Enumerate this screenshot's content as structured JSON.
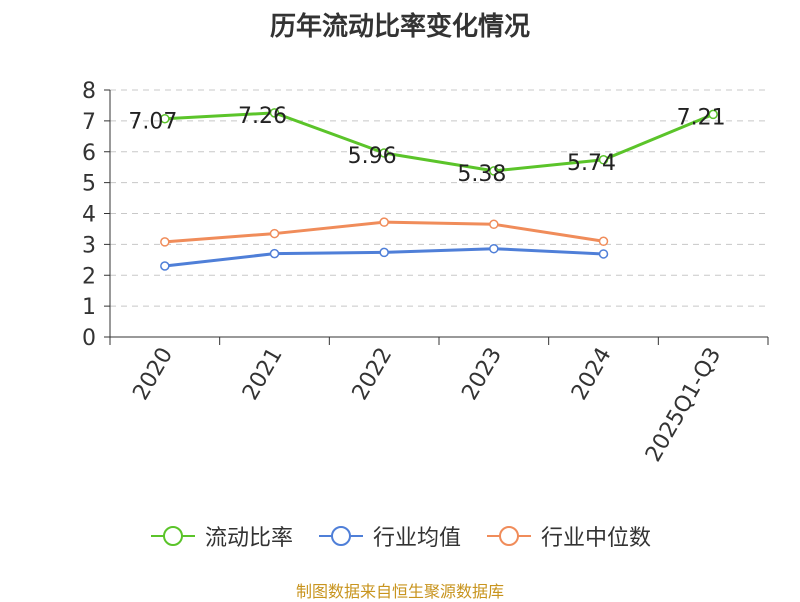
{
  "chart_data": {
    "type": "line",
    "title": "历年流动比率变化情况",
    "categories": [
      "2020",
      "2021",
      "2022",
      "2023",
      "2024",
      "2025Q1-Q3"
    ],
    "ylim": [
      0,
      8
    ],
    "yticks": [
      "0",
      "1",
      "2",
      "3",
      "4",
      "5",
      "6",
      "7",
      "8"
    ],
    "grid": true,
    "legend_position": "bottom",
    "series": [
      {
        "name": "流动比率",
        "color": "#5bc42a",
        "values": [
          7.07,
          7.26,
          5.96,
          5.38,
          5.74,
          7.21
        ],
        "labels": [
          "7.07",
          "7.26",
          "5.96",
          "5.38",
          "5.74",
          "7.21"
        ]
      },
      {
        "name": "行业均值",
        "color": "#4f7fd8",
        "values": [
          2.3,
          2.7,
          2.74,
          2.86,
          2.69,
          null
        ]
      },
      {
        "name": "行业中位数",
        "color": "#f08c5a",
        "values": [
          3.08,
          3.35,
          3.72,
          3.65,
          3.1,
          null
        ]
      }
    ]
  },
  "source": "制图数据来自恒生聚源数据库"
}
